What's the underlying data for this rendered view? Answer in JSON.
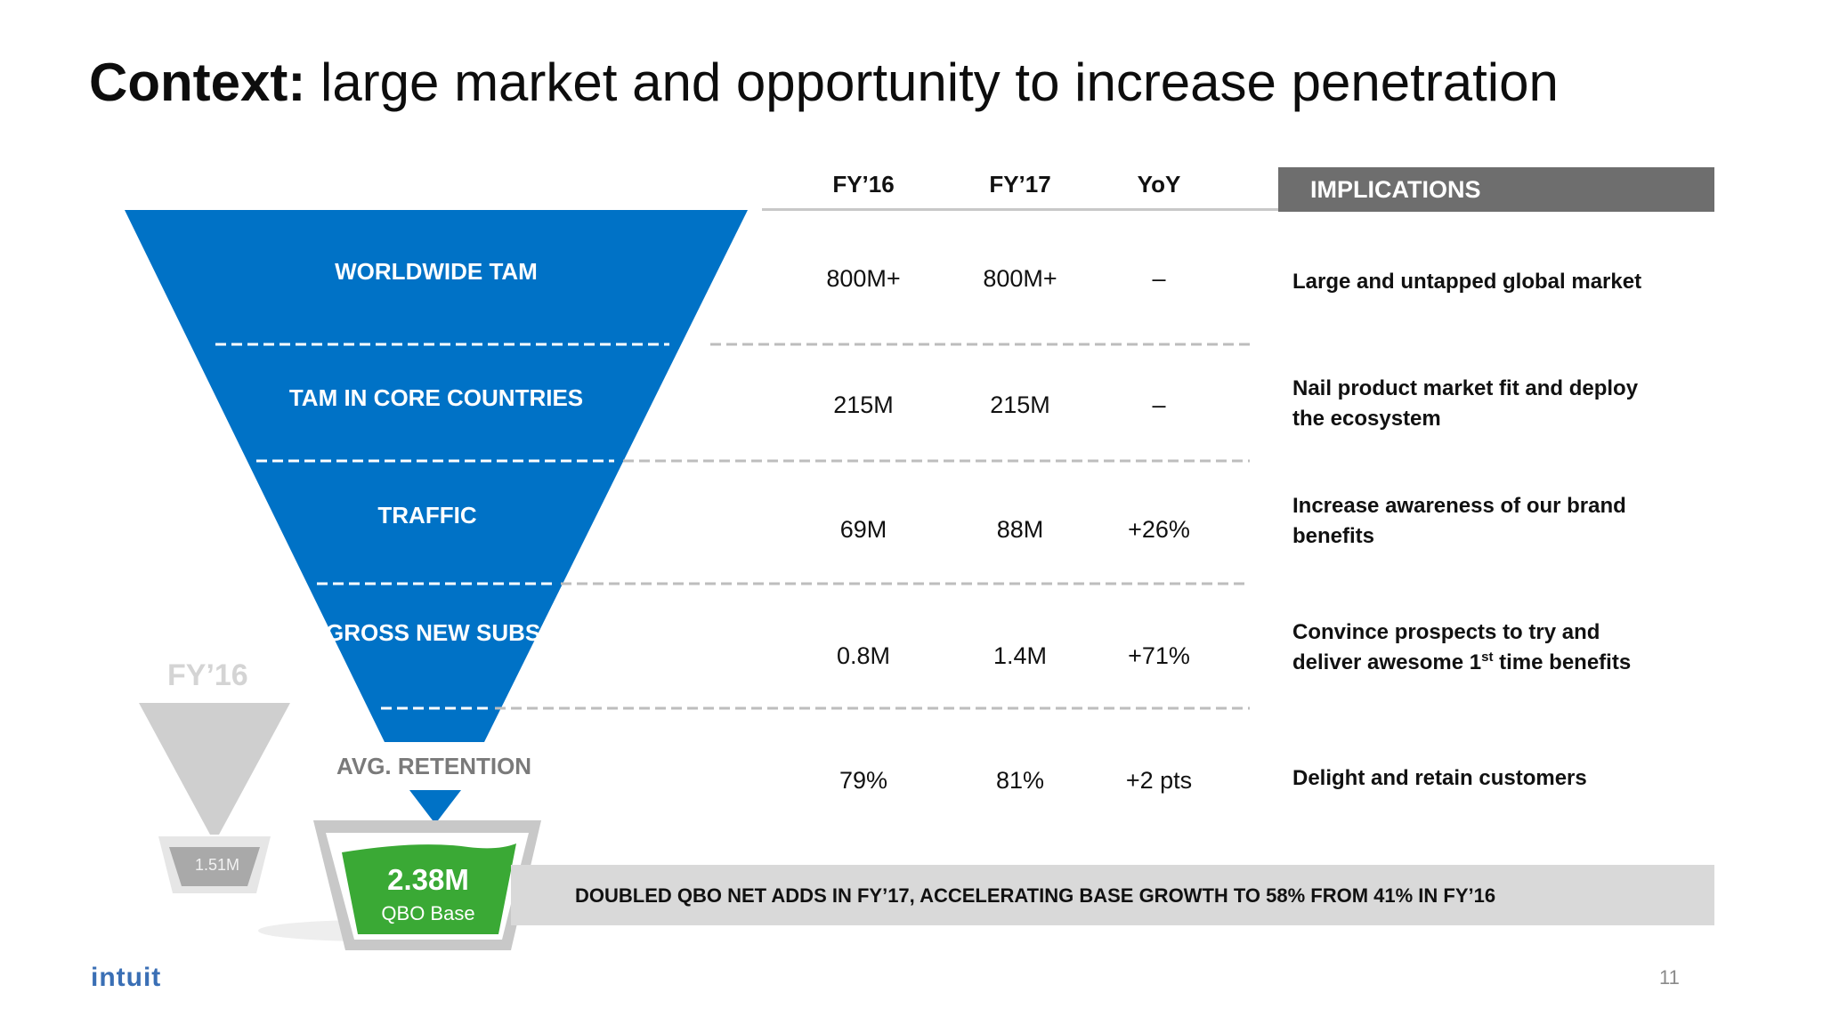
{
  "slide": {
    "title_bold": "Context:",
    "title_rest": " large market and opportunity to increase penetration",
    "page_number": "11",
    "logo_text": "intuit"
  },
  "table": {
    "headers": [
      "FY’16",
      "FY’17",
      "YoY"
    ],
    "implications_header": "IMPLICATIONS",
    "rows": [
      {
        "funnel_label": "WORLDWIDE TAM",
        "fy16": "800M+",
        "fy17": "800M+",
        "yoy": "–",
        "implication": "Large and untapped global market"
      },
      {
        "funnel_label": "TAM IN CORE COUNTRIES",
        "fy16": "215M",
        "fy17": "215M",
        "yoy": "–",
        "implication_line1": "Nail product market fit and deploy",
        "implication_line2": "the ecosystem"
      },
      {
        "funnel_label": "TRAFFIC",
        "fy16": "69M",
        "fy17": "88M",
        "yoy": "+26%",
        "implication_line1": "Increase awareness of our brand",
        "implication_line2": "benefits"
      },
      {
        "funnel_label": "GROSS NEW SUBS",
        "fy16": "0.8M",
        "fy17": "1.4M",
        "yoy": "+71%",
        "implication_line1": "Convince prospects to try and",
        "implication_line2a": "deliver awesome 1",
        "implication_line2_sup": "st",
        "implication_line2b": " time benefits"
      },
      {
        "funnel_label": "AVG. RETENTION",
        "fy16": "79%",
        "fy17": "81%",
        "yoy": "+2 pts",
        "implication": "Delight and retain customers"
      }
    ]
  },
  "fy16_funnel": {
    "label": "FY’16",
    "base_value": "1.51M"
  },
  "fy17_base": {
    "value": "2.38M",
    "caption": "QBO Base"
  },
  "banner": {
    "text": "DOUBLED QBO NET ADDS IN FY’17, ACCELERATING BASE GROWTH TO 58% FROM 41% IN FY’16"
  },
  "colors": {
    "funnel_blue": "#0072c6",
    "bucket_green": "#3aa935",
    "gray_funnel": "#c9c9c9",
    "implications_bar": "#6e6e6e",
    "banner_gray": "#d9d9d9"
  }
}
